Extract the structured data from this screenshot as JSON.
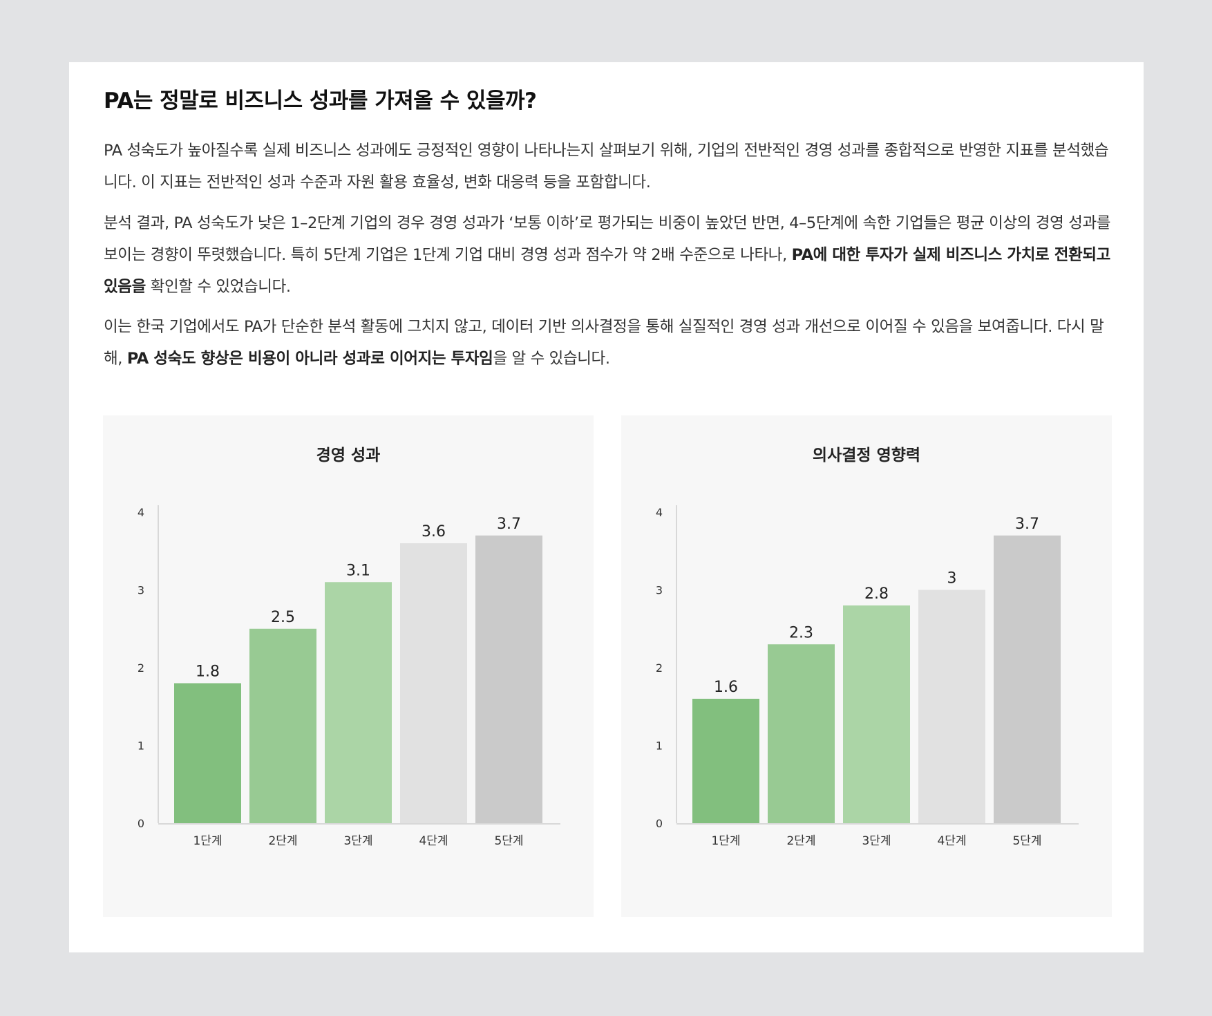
{
  "article": {
    "title": "PA는 정말로 비즈니스 성과를 가져올 수 있을까?",
    "p1": "PA 성숙도가 높아질수록 실제 비즈니스 성과에도 긍정적인 영향이 나타나는지 살펴보기 위해, 기업의 전반적인 경영 성과를 종합적으로 반영한 지표를 분석했습니다. 이 지표는 전반적인 성과 수준과 자원 활용 효율성, 변화 대응력 등을 포함합니다.",
    "p2_a": "분석 결과, PA 성숙도가 낮은 1–2단계 기업의 경우 경영 성과가 ‘보통 이하’로 평가되는 비중이 높았던 반면, 4–5단계에 속한 기업들은 평균 이상의 경영 성과를 보이는 경향이 뚜렷했습니다. 특히 5단계 기업은 1단계 기업 대비 경영 성과 점수가 약 2배 수준으로 나타나, ",
    "p2_b": "PA에 대한 투자가 실제 비즈니스 가치로 전환되고 있음을",
    "p2_c": " 확인할 수 있었습니다.",
    "p3_a": "이는 한국 기업에서도 PA가 단순한 분석 활동에 그치지 않고, 데이터 기반 의사결정을 통해 실질적인 경영 성과 개선으로 이어질 수 있음을 보여줍니다. 다시 말해, ",
    "p3_b": "PA 성숙도 향상은 비용이 아니라 성과로 이어지는 투자임",
    "p3_c": "을 알 수 있습니다."
  },
  "chart_data": [
    {
      "type": "bar",
      "title": "경영 성과",
      "categories": [
        "1단계",
        "2단계",
        "3단계",
        "4단계",
        "5단계"
      ],
      "values": [
        1.8,
        2.5,
        3.1,
        3.6,
        3.7
      ],
      "value_labels": [
        "1.8",
        "2.5",
        "3.1",
        "3.6",
        "3.7"
      ],
      "yticks": [
        "0",
        "1",
        "2",
        "3",
        "4"
      ],
      "ylim": [
        0,
        4
      ],
      "grid": false,
      "bar_colors": [
        "#82bf7e",
        "#98ca93",
        "#abd5a6",
        "#e1e1e1",
        "#cacaca"
      ]
    },
    {
      "type": "bar",
      "title": "의사결정 영향력",
      "categories": [
        "1단계",
        "2단계",
        "3단계",
        "4단계",
        "5단계"
      ],
      "values": [
        1.6,
        2.3,
        2.8,
        3,
        3.7
      ],
      "value_labels": [
        "1.6",
        "2.3",
        "2.8",
        "3",
        "3.7"
      ],
      "yticks": [
        "0",
        "1",
        "2",
        "3",
        "4"
      ],
      "ylim": [
        0,
        4
      ],
      "grid": false,
      "bar_colors": [
        "#82bf7e",
        "#98ca93",
        "#abd5a6",
        "#e1e1e1",
        "#cacaca"
      ]
    }
  ]
}
